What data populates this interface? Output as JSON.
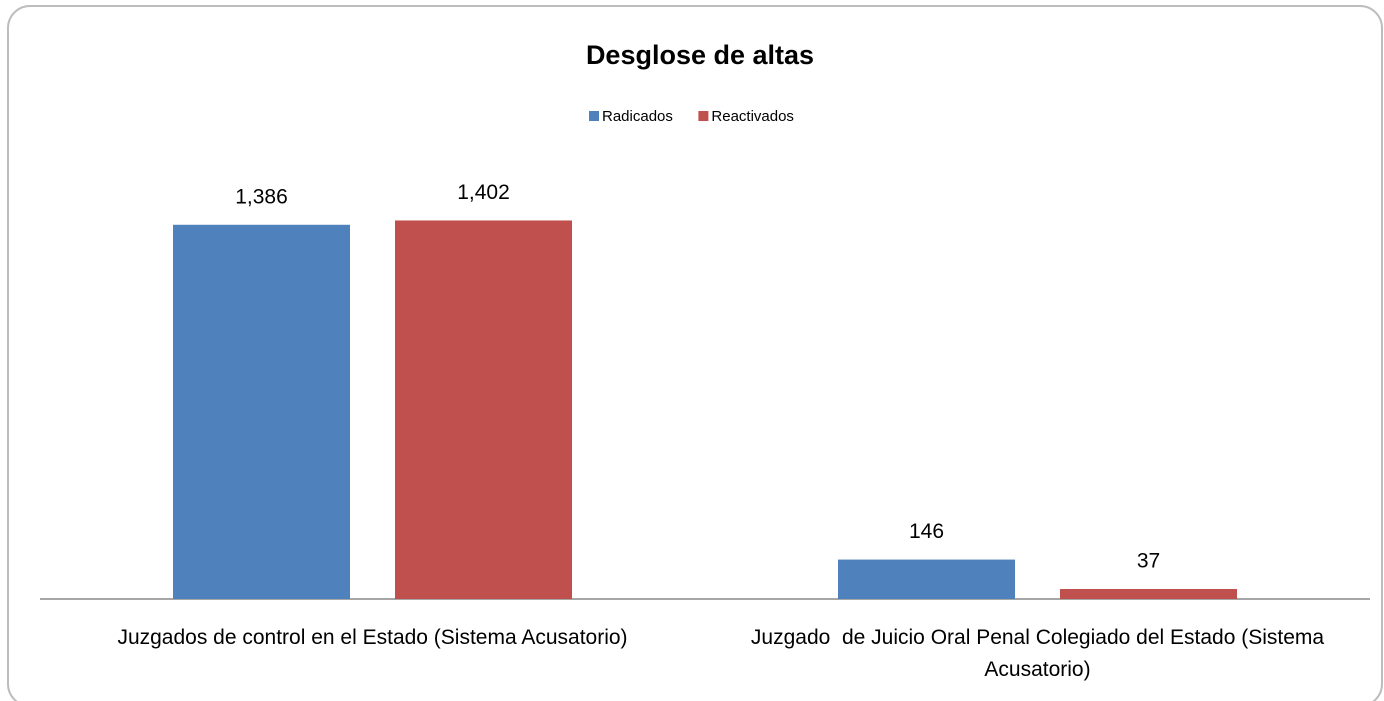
{
  "chart_data": {
    "type": "bar",
    "title": "Desglose de altas",
    "categories": [
      "Juzgados de control en el Estado (Sistema Acusatorio)",
      "Juzgado  de Juicio Oral Penal Colegiado del Estado (Sistema Acusatorio)"
    ],
    "series": [
      {
        "name": "Radicados",
        "color": "#4f81bd",
        "values": [
          1386,
          146
        ],
        "value_labels": [
          "1,386",
          "146"
        ]
      },
      {
        "name": "Reactivados",
        "color": "#c0504d",
        "values": [
          1402,
          37
        ],
        "value_labels": [
          "1,402",
          "37"
        ]
      }
    ],
    "ylim": [
      0,
      1600
    ],
    "legend": "top"
  }
}
